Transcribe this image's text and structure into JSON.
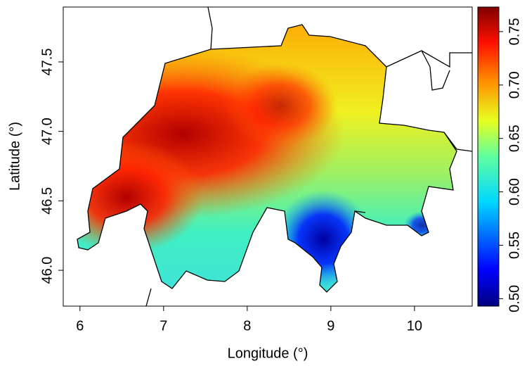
{
  "chart_data": {
    "type": "heatmap",
    "x_label": "Longitude (°)",
    "y_label": "Latitude (°)",
    "xlim": [
      5.8,
      10.69
    ],
    "ylim": [
      45.742,
      47.895
    ],
    "xticks": [
      6,
      7,
      8,
      9,
      10
    ],
    "yticks": [
      {
        "value": 46,
        "label": "46.0"
      },
      46.5,
      {
        "value": 47,
        "label": "47.0"
      },
      47.5
    ],
    "colorbar_lim": [
      0.493,
      0.773
    ],
    "colorbar_ticks": [
      {
        "value": 0.5,
        "label": "0.50"
      },
      0.55,
      {
        "value": 0.6,
        "label": "0.60"
      },
      0.65,
      {
        "value": 0.7,
        "label": "0.70"
      },
      0.75
    ]
  }
}
